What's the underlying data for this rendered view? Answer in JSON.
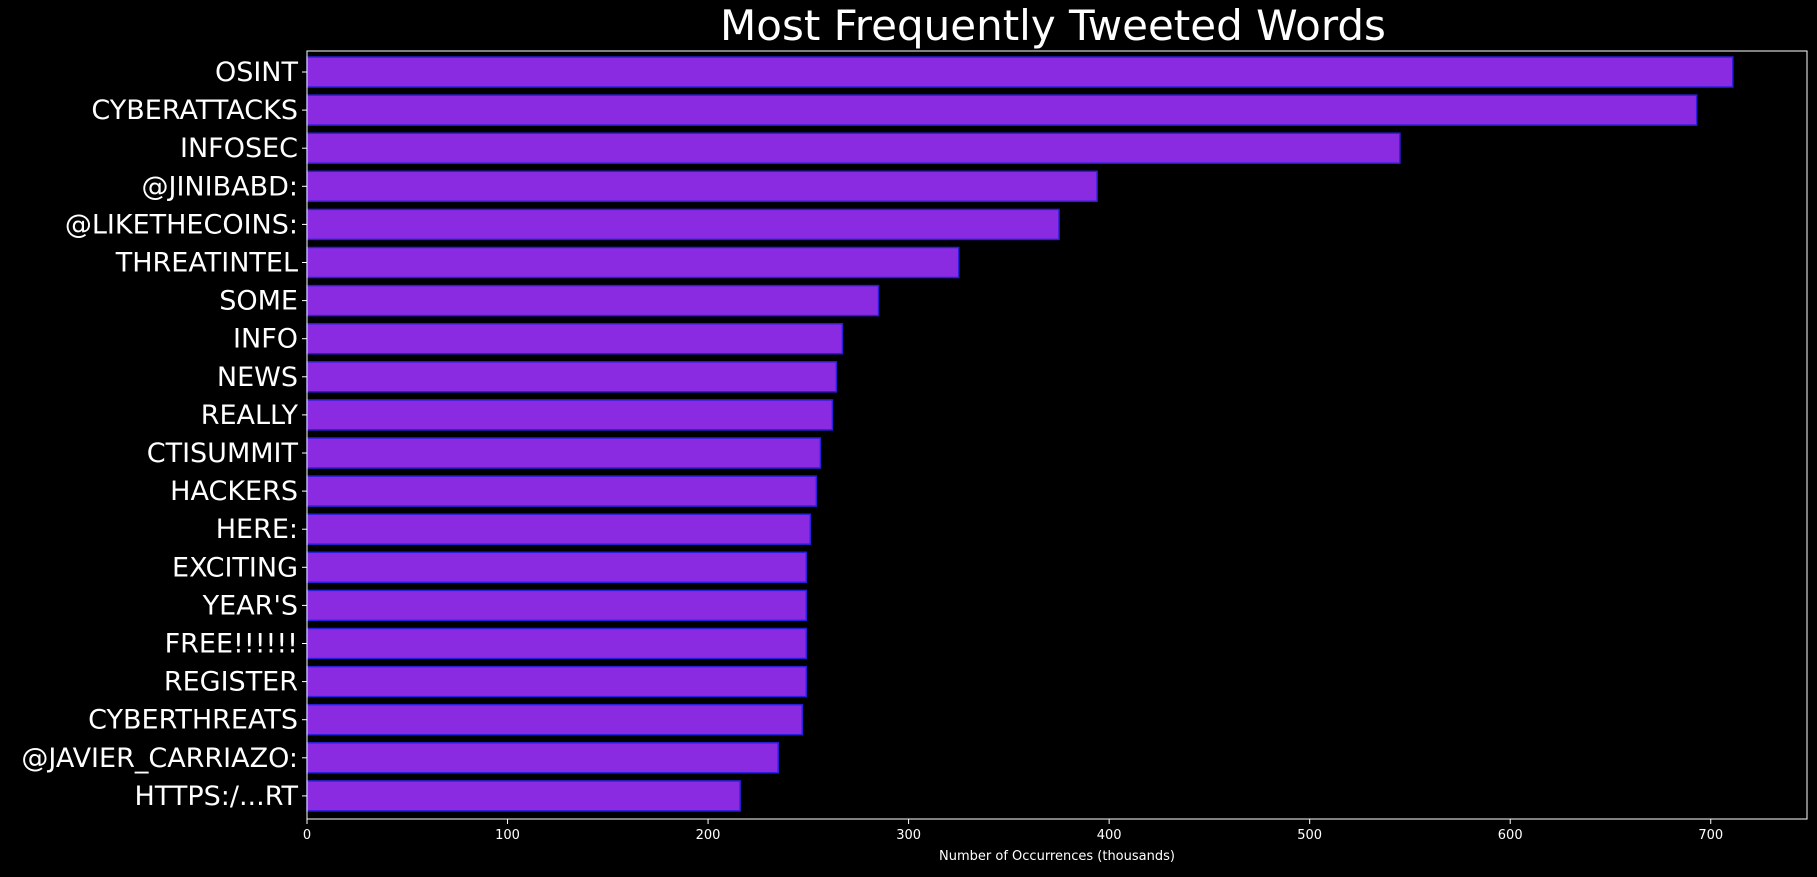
{
  "chart_data": {
    "type": "bar",
    "orientation": "horizontal",
    "title": "Most Frequently Tweeted Words",
    "xlabel": "Number of Occurrences (thousands)",
    "ylabel": "",
    "xlim": [
      0,
      748
    ],
    "xticks": [
      0,
      100,
      200,
      300,
      400,
      500,
      600,
      700
    ],
    "grid": false,
    "legend": "none",
    "categories": [
      "OSINT",
      "CYBERATTACKS",
      "INFOSEC",
      "@JINIBABD:",
      "@LIKETHECOINS:",
      "THREATINTEL",
      "SOME",
      "INFO",
      "NEWS",
      "REALLY",
      "CTISUMMIT",
      "HACKERS",
      "HERE:",
      "EXCITING",
      "YEAR'S",
      "FREE!!!!!!",
      "REGISTER",
      "CYBERTHREATS",
      "@JAVIER_CARRIAZO:",
      "HTTPS:/...RT"
    ],
    "values": [
      711,
      693,
      545,
      394,
      375,
      325,
      285,
      267,
      264,
      262,
      256,
      254,
      251,
      249,
      249,
      249,
      249,
      247,
      235,
      216
    ],
    "colors": {
      "background": "#000000",
      "bar_fill": "#8a2be2",
      "bar_edge": "#2a1fd8",
      "text": "#ffffff",
      "axis": "#ffffff"
    }
  }
}
